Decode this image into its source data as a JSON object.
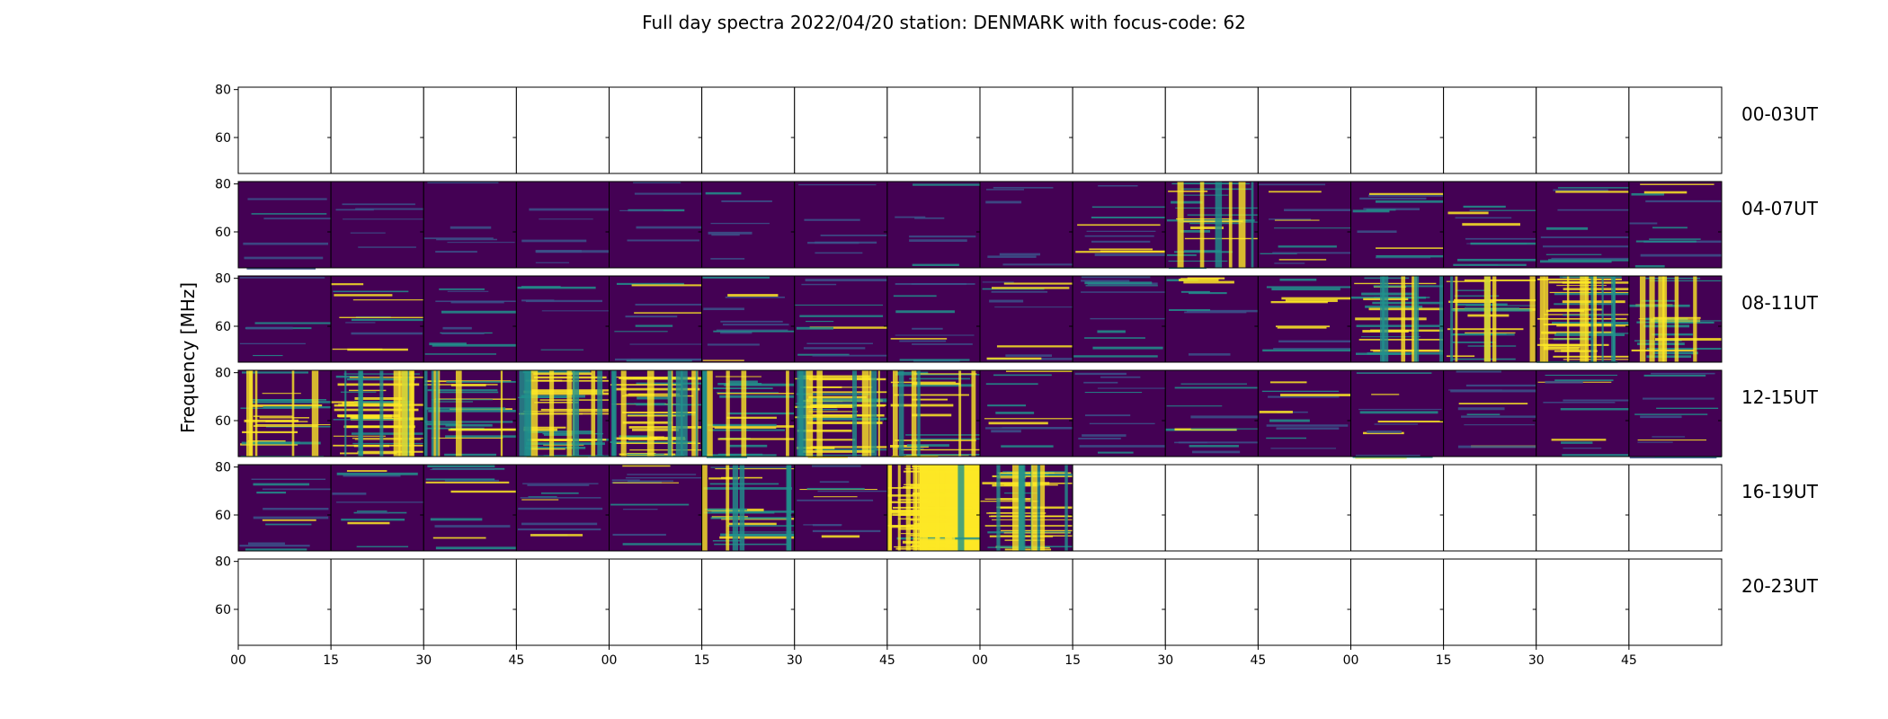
{
  "chart_data": {
    "type": "heatmap",
    "title": "Full day spectra 2022/04/20 station: DENMARK with focus-code: 62",
    "ylabel": "Frequency [MHz]",
    "xlabel": "",
    "ylim": [
      45,
      81
    ],
    "y_ticks": [
      60,
      80
    ],
    "x_tick_labels": [
      "00",
      "15",
      "30",
      "45",
      "00",
      "15",
      "30",
      "45",
      "00",
      "15",
      "30",
      "45",
      "00",
      "15",
      "30",
      "45"
    ],
    "colormap": "viridis",
    "colors": {
      "low": "#440154",
      "mid": "#21918c",
      "high": "#fde725",
      "frame": "#000000"
    },
    "rows": [
      {
        "label": "00-03UT",
        "panels": [
          "empty",
          "empty",
          "empty",
          "empty",
          "empty",
          "empty",
          "empty",
          "empty",
          "empty",
          "empty",
          "empty",
          "empty",
          "empty",
          "empty",
          "empty",
          "empty"
        ]
      },
      {
        "label": "04-07UT",
        "panels": [
          "quiet",
          "quiet",
          "quiet",
          "quiet",
          "quiet",
          "quiet",
          "quiet",
          "quiet",
          "quiet",
          "moderate",
          "strong",
          "moderate",
          "moderate",
          "moderate",
          "moderate",
          "moderate"
        ]
      },
      {
        "label": "08-11UT",
        "panels": [
          "quiet",
          "moderate",
          "moderate",
          "quiet",
          "moderate",
          "moderate",
          "moderate",
          "moderate",
          "moderate",
          "moderate",
          "moderate",
          "moderate",
          "strong",
          "strong",
          "very_strong",
          "strong"
        ]
      },
      {
        "label": "12-15UT",
        "panels": [
          "strong",
          "very_strong",
          "strong",
          "very_strong",
          "very_strong",
          "strong",
          "very_strong",
          "strong",
          "moderate",
          "moderate",
          "moderate",
          "moderate",
          "moderate",
          "moderate",
          "moderate",
          "moderate"
        ]
      },
      {
        "label": "16-19UT",
        "panels": [
          "moderate",
          "moderate",
          "moderate",
          "moderate",
          "moderate",
          "strong",
          "moderate",
          "saturated",
          "very_strong",
          "empty",
          "empty",
          "empty",
          "empty",
          "empty",
          "empty",
          "empty"
        ]
      },
      {
        "label": "20-23UT",
        "panels": [
          "empty",
          "empty",
          "empty",
          "empty",
          "empty",
          "empty",
          "empty",
          "empty",
          "empty",
          "empty",
          "empty",
          "empty",
          "empty",
          "empty",
          "empty",
          "empty"
        ]
      }
    ]
  }
}
